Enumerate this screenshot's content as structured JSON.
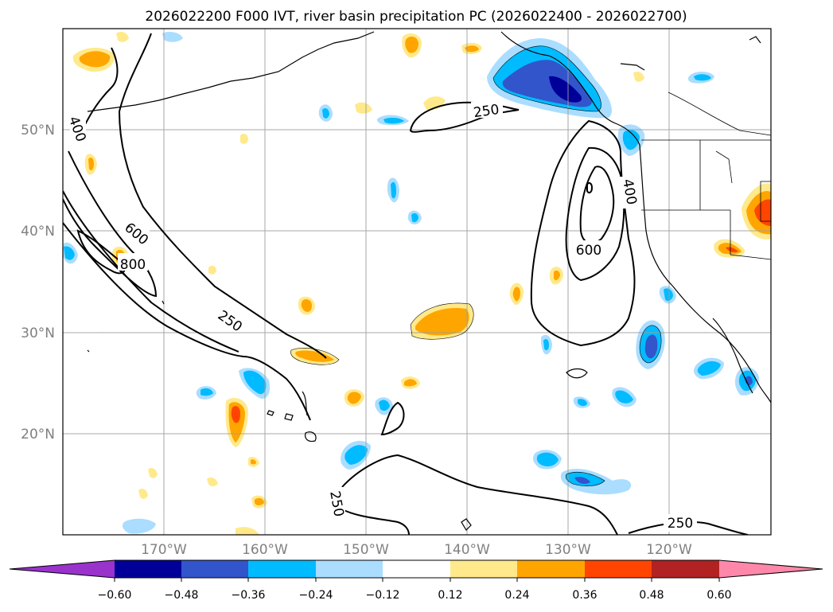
{
  "title": "2026022200 F000 IVT, river basin precipitation PC (2026022400 - 2026022700)",
  "lat_labels": [
    "50°N",
    "40°N",
    "30°N",
    "20°N"
  ],
  "lon_labels": [
    "170°W",
    "160°W",
    "150°W",
    "140°W",
    "130°W",
    "120°W"
  ],
  "contour_labels": [
    "400",
    "600",
    "800",
    "250",
    "250",
    "400",
    "600",
    "250",
    "250"
  ],
  "colorbar": {
    "tick_labels": [
      "−0.60",
      "−0.48",
      "−0.36",
      "−0.24",
      "−0.12",
      "0.12",
      "0.24",
      "0.36",
      "0.48",
      "0.60"
    ],
    "colors": [
      "#9933cc",
      "#000099",
      "#3355cc",
      "#00bbff",
      "#aaddff",
      "#ffffff",
      "#ffe98a",
      "#ffa500",
      "#ff4500",
      "#b22222",
      "#ff88aa"
    ]
  }
}
